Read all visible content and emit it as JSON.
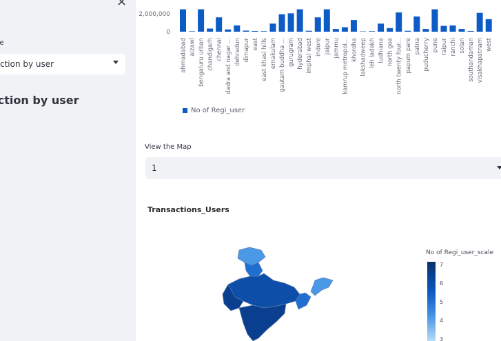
{
  "sidebar": {
    "close_symbol": "×",
    "page_label": "ge",
    "page_select_value": "ction by user",
    "heading": "action by user"
  },
  "bar_chart": {
    "y_ticks": [
      "2,000,000",
      "0"
    ],
    "legend_label": "No of Regi_user"
  },
  "map_view": {
    "label": "View the Map",
    "selected": "1"
  },
  "map_title": "Transactions_Users",
  "color_scale": {
    "title": "No of Regi_user_scale",
    "ticks": [
      "7",
      "6",
      "5",
      "4",
      "3"
    ]
  },
  "chart_data": {
    "type": "bar",
    "categories": [
      "ahmadabad",
      "aizawl",
      "bengaluru urban",
      "chandigarh",
      "chennai",
      "dadra and nagar ...",
      "dehradun",
      "dimapur",
      "east",
      "east khasi hills",
      "ernakulam",
      "gautam buddha ...",
      "gurugram",
      "hyderabad",
      "imphal west",
      "indore",
      "jaipur",
      "jammu",
      "kamrup metropol...",
      "khordha",
      "lakshadweep",
      "leh ladakh",
      "ludhiana",
      "north goa",
      "north twenty four...",
      "papum pare",
      "patna",
      "puducherry",
      "pune",
      "raipur",
      "ranchi",
      "solan",
      "southandaman",
      "visakhapatnam",
      "west"
    ],
    "values": [
      2500000,
      50000,
      2500000,
      350000,
      1600000,
      250000,
      700000,
      120000,
      80000,
      60000,
      900000,
      1950000,
      2050000,
      2500000,
      100000,
      1600000,
      2500000,
      300000,
      500000,
      1300000,
      30000,
      60000,
      900000,
      400000,
      2150000,
      100000,
      1700000,
      300000,
      2500000,
      650000,
      700000,
      300000,
      80000,
      2100000,
      1400000
    ],
    "series": [
      {
        "name": "No of Regi_user"
      }
    ],
    "yticks": [
      "2,000,000",
      "0"
    ],
    "legend": "bottom-left"
  }
}
